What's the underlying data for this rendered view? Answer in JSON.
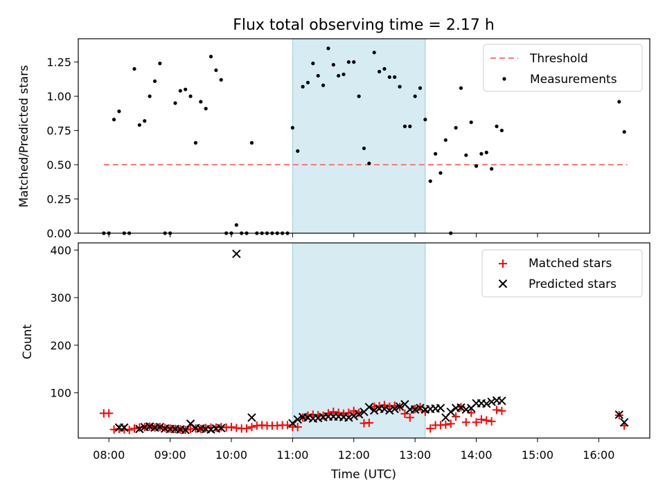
{
  "chart_data": [
    {
      "type": "scatter",
      "title": "Flux total observing time = 2.17 h",
      "ylabel": "Matched/Predicted stars",
      "xlabel": "",
      "xlim": [
        "07:30",
        "16:50"
      ],
      "ylim": [
        0,
        1.42
      ],
      "yticks": [
        "0.00",
        "0.25",
        "0.50",
        "0.75",
        "1.00",
        "1.25"
      ],
      "shaded_region": [
        "11:00",
        "13:10"
      ],
      "legend_position": "top-right",
      "series": [
        {
          "name": "Threshold",
          "style": "dashed-line",
          "color": "#ff7777",
          "x": [
            "07:55",
            "16:28"
          ],
          "y": [
            0.5,
            0.5
          ]
        },
        {
          "name": "Measurements",
          "style": "dot",
          "color": "#000000",
          "x": [
            "07:55",
            "08:00",
            "08:05",
            "08:10",
            "08:15",
            "08:20",
            "08:25",
            "08:30",
            "08:35",
            "08:40",
            "08:45",
            "08:50",
            "08:55",
            "09:00",
            "09:05",
            "09:10",
            "09:15",
            "09:20",
            "09:25",
            "09:30",
            "09:35",
            "09:40",
            "09:45",
            "09:50",
            "09:55",
            "10:00",
            "10:05",
            "10:10",
            "10:15",
            "10:20",
            "10:25",
            "10:30",
            "10:35",
            "10:40",
            "10:45",
            "10:50",
            "10:55",
            "11:00",
            "11:05",
            "11:10",
            "11:15",
            "11:20",
            "11:25",
            "11:30",
            "11:35",
            "11:40",
            "11:45",
            "11:50",
            "11:55",
            "12:00",
            "12:05",
            "12:10",
            "12:15",
            "12:20",
            "12:25",
            "12:30",
            "12:35",
            "12:40",
            "12:45",
            "12:50",
            "12:55",
            "13:00",
            "13:05",
            "13:10",
            "13:15",
            "13:20",
            "13:25",
            "13:30",
            "13:35",
            "13:40",
            "13:45",
            "13:50",
            "13:55",
            "14:00",
            "14:05",
            "14:10",
            "14:15",
            "14:20",
            "14:25",
            "16:20",
            "16:25"
          ],
          "y": [
            0.0,
            0.0,
            0.83,
            0.89,
            0.0,
            0.0,
            1.2,
            0.79,
            0.82,
            1.0,
            1.11,
            1.24,
            0.0,
            0.0,
            0.95,
            1.04,
            1.05,
            1.0,
            0.66,
            0.96,
            0.91,
            1.29,
            1.19,
            1.12,
            0.0,
            0.0,
            0.06,
            0.0,
            0.0,
            0.66,
            0.0,
            0.0,
            0.0,
            0.0,
            0.0,
            0.0,
            0.0,
            0.77,
            0.6,
            1.07,
            1.1,
            1.24,
            1.15,
            1.08,
            1.35,
            1.23,
            1.15,
            1.16,
            1.25,
            1.25,
            1.0,
            0.62,
            0.51,
            1.32,
            1.18,
            1.2,
            1.14,
            1.14,
            1.07,
            0.78,
            0.78,
            1.0,
            1.06,
            0.83,
            0.38,
            0.58,
            0.44,
            0.68,
            0.0,
            0.77,
            1.06,
            0.57,
            0.81,
            0.49,
            0.58,
            0.59,
            0.47,
            0.78,
            0.75,
            0.96,
            0.74
          ]
        }
      ]
    },
    {
      "type": "scatter",
      "title": "",
      "ylabel": "Count",
      "xlabel": "Time (UTC)",
      "xlim": [
        "07:30",
        "16:50"
      ],
      "ylim": [
        5,
        415
      ],
      "yticks": [
        "100",
        "200",
        "300",
        "400"
      ],
      "xticks": [
        "08:00",
        "09:00",
        "10:00",
        "11:00",
        "12:00",
        "13:00",
        "14:00",
        "15:00",
        "16:00"
      ],
      "shaded_region": [
        "11:00",
        "13:10"
      ],
      "legend_position": "top-right",
      "series": [
        {
          "name": "Matched stars",
          "style": "plus",
          "color": "#ff0000",
          "x": [
            "07:55",
            "08:00",
            "08:05",
            "08:10",
            "08:15",
            "08:20",
            "08:25",
            "08:30",
            "08:35",
            "08:40",
            "08:45",
            "08:50",
            "08:55",
            "09:00",
            "09:05",
            "09:10",
            "09:15",
            "09:20",
            "09:25",
            "09:30",
            "09:35",
            "09:40",
            "09:45",
            "09:50",
            "09:55",
            "10:00",
            "10:05",
            "10:10",
            "10:15",
            "10:20",
            "10:25",
            "10:30",
            "10:35",
            "10:40",
            "10:45",
            "10:50",
            "10:55",
            "11:00",
            "11:05",
            "11:10",
            "11:15",
            "11:20",
            "11:25",
            "11:30",
            "11:35",
            "11:40",
            "11:45",
            "11:50",
            "11:55",
            "12:00",
            "12:05",
            "12:10",
            "12:15",
            "12:20",
            "12:25",
            "12:30",
            "12:35",
            "12:40",
            "12:45",
            "12:50",
            "12:55",
            "13:00",
            "13:05",
            "13:10",
            "13:15",
            "13:20",
            "13:25",
            "13:30",
            "13:35",
            "13:40",
            "13:45",
            "13:50",
            "13:55",
            "14:00",
            "14:05",
            "14:10",
            "14:15",
            "14:20",
            "14:25",
            "16:20",
            "16:25"
          ],
          "y": [
            57,
            57,
            23,
            24,
            23,
            22,
            25,
            27,
            28,
            29,
            27,
            28,
            26,
            25,
            24,
            23,
            22,
            24,
            25,
            24,
            26,
            27,
            27,
            28,
            27,
            28,
            26,
            25,
            25,
            28,
            31,
            32,
            31,
            31,
            31,
            32,
            32,
            28,
            28,
            48,
            52,
            54,
            53,
            52,
            57,
            60,
            58,
            56,
            58,
            62,
            58,
            36,
            37,
            71,
            72,
            74,
            71,
            73,
            70,
            56,
            48,
            66,
            70,
            60,
            25,
            32,
            32,
            33,
            35,
            50,
            70,
            38,
            58,
            38,
            44,
            42,
            40,
            64,
            62,
            53,
            31
          ]
        },
        {
          "name": "Predicted stars",
          "style": "x",
          "color": "#000000",
          "x": [
            "08:10",
            "08:15",
            "08:30",
            "08:35",
            "08:40",
            "08:45",
            "08:50",
            "08:55",
            "09:00",
            "09:05",
            "09:10",
            "09:15",
            "09:20",
            "09:25",
            "09:30",
            "09:35",
            "09:40",
            "09:45",
            "09:50",
            "10:05",
            "10:20",
            "11:00",
            "11:05",
            "11:10",
            "11:15",
            "11:20",
            "11:25",
            "11:30",
            "11:35",
            "11:40",
            "11:45",
            "11:50",
            "11:55",
            "12:00",
            "12:05",
            "12:10",
            "12:15",
            "12:20",
            "12:25",
            "12:30",
            "12:35",
            "12:40",
            "12:45",
            "12:50",
            "12:55",
            "13:00",
            "13:05",
            "13:10",
            "13:15",
            "13:20",
            "13:25",
            "13:30",
            "13:35",
            "13:40",
            "13:45",
            "13:50",
            "13:55",
            "14:00",
            "14:05",
            "14:10",
            "14:15",
            "14:20",
            "14:25",
            "16:20",
            "16:25"
          ],
          "y": [
            27,
            27,
            24,
            28,
            29,
            27,
            28,
            25,
            24,
            24,
            23,
            22,
            35,
            26,
            25,
            24,
            23,
            25,
            26,
            392,
            48,
            36,
            44,
            49,
            48,
            46,
            47,
            49,
            50,
            50,
            50,
            49,
            48,
            51,
            55,
            60,
            70,
            63,
            67,
            66,
            63,
            66,
            71,
            76,
            65,
            65,
            68,
            65,
            66,
            67,
            68,
            48,
            60,
            68,
            69,
            65,
            68,
            78,
            78,
            77,
            81,
            84,
            83,
            54,
            38
          ]
        }
      ]
    }
  ]
}
